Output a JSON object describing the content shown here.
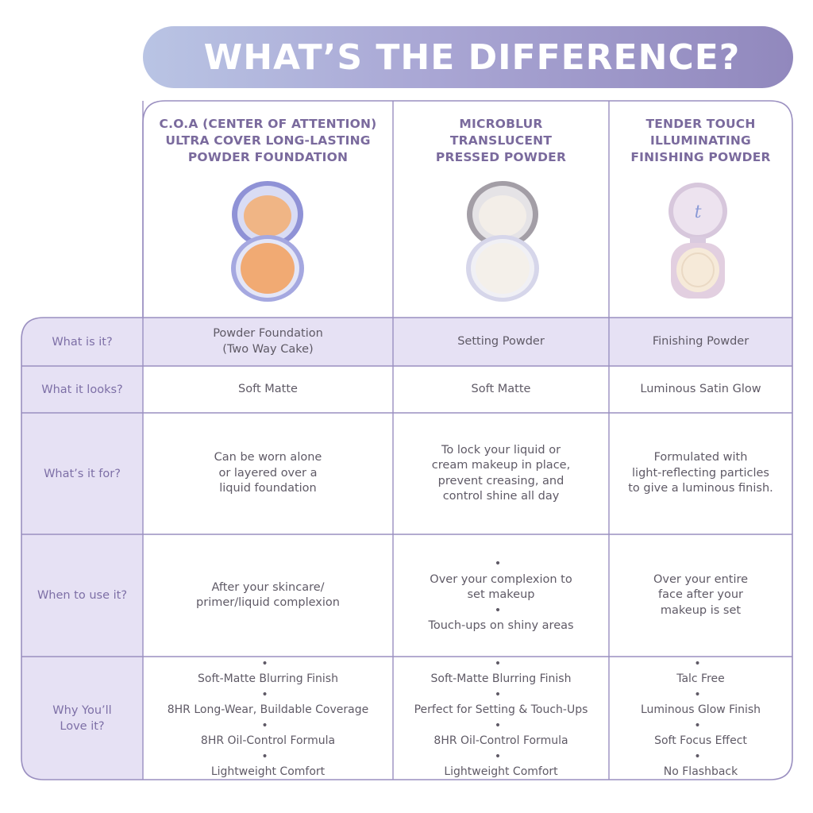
{
  "banner": {
    "title": "WHAT’S THE DIFFERENCE?"
  },
  "colors": {
    "frame": "#9a8fc0",
    "label_fill": "#e6e1f4",
    "banner_start": "#b9c4e4",
    "banner_end": "#9188bd",
    "title_purple": "#7a6a9d"
  },
  "products": [
    {
      "title_lines": [
        "C.O.A (CENTER OF ATTENTION)",
        "ULTRA COVER LONG-LASTING",
        "POWDER FOUNDATION"
      ],
      "image": "powder-foundation-compact"
    },
    {
      "title_lines": [
        "MICROBLUR",
        "TRANSLUCENT",
        "PRESSED POWDER"
      ],
      "image": "translucent-powder-compact"
    },
    {
      "title_lines": [
        "TENDER TOUCH",
        "ILLUMINATING",
        "FINISHING POWDER"
      ],
      "image": "finishing-powder-compact"
    }
  ],
  "rows": [
    {
      "label": [
        "What is it?"
      ],
      "cells": [
        {
          "lines": [
            "Powder Foundation",
            "(Two Way Cake)"
          ]
        },
        {
          "lines": [
            "Setting Powder"
          ]
        },
        {
          "lines": [
            "Finishing Powder"
          ]
        }
      ]
    },
    {
      "label": [
        "What it looks?"
      ],
      "cells": [
        {
          "lines": [
            "Soft Matte"
          ]
        },
        {
          "lines": [
            "Soft Matte"
          ]
        },
        {
          "lines": [
            "Luminous Satin Glow"
          ]
        }
      ]
    },
    {
      "label": [
        "What’s it for?"
      ],
      "cells": [
        {
          "lines": [
            "Can be worn alone",
            "or layered over a",
            "liquid foundation"
          ]
        },
        {
          "lines": [
            "To lock your liquid or",
            "cream makeup in place,",
            "prevent creasing, and",
            "control shine all day"
          ]
        },
        {
          "lines": [
            "Formulated with",
            "light-reflecting particles",
            "to give a luminous finish."
          ]
        }
      ]
    },
    {
      "label": [
        "When to use it?"
      ],
      "cells": [
        {
          "lines": [
            "After your skincare/",
            "primer/liquid complexion"
          ]
        },
        {
          "bullets": [
            "Over your complexion to set makeup",
            "Touch-ups on shiny areas"
          ]
        },
        {
          "lines": [
            "Over your entire",
            "face after your",
            "makeup is set"
          ]
        }
      ]
    },
    {
      "label": [
        "Why You’ll",
        "Love it?"
      ],
      "cells": [
        {
          "bullets": [
            "Soft-Matte Blurring Finish",
            "8HR Long-Wear, Buildable Coverage",
            "8HR Oil-Control Formula",
            "Lightweight Comfort"
          ]
        },
        {
          "bullets": [
            "Soft-Matte Blurring Finish",
            "Perfect for Setting & Touch-Ups",
            "8HR Oil-Control Formula",
            "Lightweight Comfort"
          ]
        },
        {
          "bullets": [
            "Talc Free",
            "Luminous Glow Finish",
            "Soft Focus Effect",
            "No Flashback"
          ]
        }
      ]
    }
  ]
}
